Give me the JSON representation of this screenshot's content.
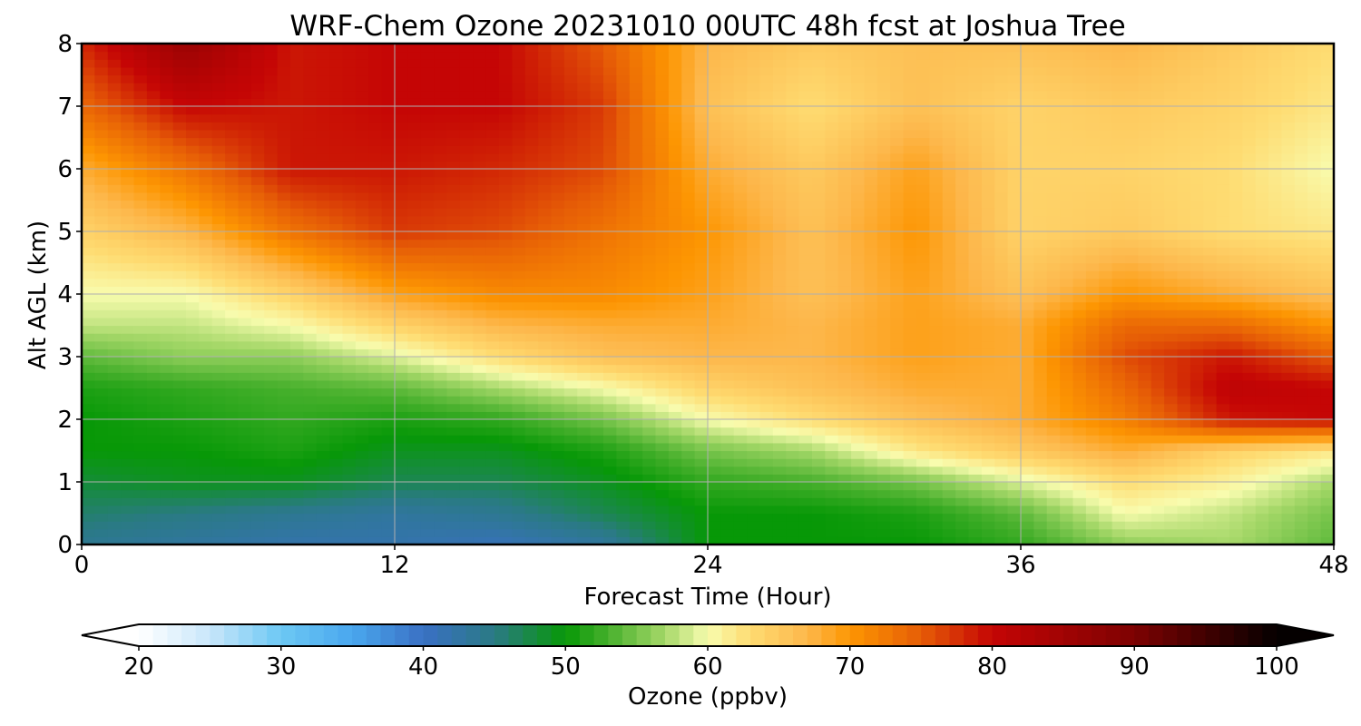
{
  "chart_data": {
    "type": "heatmap",
    "title": "WRF-Chem Ozone  20231010 00UTC 48h fcst at Joshua Tree",
    "xlabel": "Forecast Time (Hour)",
    "ylabel": "Alt AGL (km)",
    "xlim": [
      0,
      48
    ],
    "ylim": [
      0,
      8
    ],
    "x_ticks": [
      0,
      12,
      24,
      36,
      48
    ],
    "y_ticks": [
      0,
      1,
      2,
      3,
      4,
      5,
      6,
      7,
      8
    ],
    "grid": true,
    "x": [
      0,
      4,
      8,
      12,
      16,
      20,
      24,
      28,
      32,
      36,
      40,
      44,
      48
    ],
    "y": [
      0,
      0.5,
      1,
      1.5,
      2,
      2.5,
      3,
      3.5,
      4,
      5,
      6,
      7,
      8
    ],
    "z": [
      [
        44,
        43,
        42,
        42,
        41,
        43,
        50,
        50,
        50,
        52,
        56,
        57,
        54
      ],
      [
        46,
        45,
        44,
        43,
        44,
        47,
        50,
        50,
        51,
        54,
        60,
        58,
        55
      ],
      [
        48,
        49,
        49,
        47,
        47,
        49,
        52,
        53,
        55,
        59,
        63,
        61,
        57
      ],
      [
        50,
        50,
        51,
        49,
        49,
        51,
        55,
        57,
        62,
        65,
        68,
        64,
        62
      ],
      [
        50,
        51,
        52,
        51,
        52,
        55,
        60,
        63,
        66,
        68,
        72,
        79,
        80
      ],
      [
        51,
        52,
        53,
        54,
        57,
        60,
        64,
        66,
        68,
        68,
        74,
        81,
        80
      ],
      [
        54,
        56,
        56,
        59,
        63,
        66,
        67,
        67,
        69,
        68,
        76,
        79,
        75
      ],
      [
        58,
        58,
        60,
        64,
        67,
        68,
        68,
        67,
        69,
        68,
        74,
        74,
        70
      ],
      [
        60,
        60,
        64,
        69,
        71,
        71,
        69,
        66,
        69,
        66,
        70,
        68,
        66
      ],
      [
        64,
        67,
        73,
        77,
        76,
        73,
        70,
        66,
        70,
        64,
        65,
        63,
        62
      ],
      [
        68,
        73,
        79,
        79,
        78,
        76,
        68,
        65,
        69,
        64,
        64,
        63,
        60
      ],
      [
        74,
        80,
        79,
        80,
        80,
        77,
        66,
        63,
        66,
        64,
        65,
        64,
        62
      ],
      [
        78,
        86,
        79,
        80,
        80,
        75,
        67,
        65,
        66,
        66,
        67,
        65,
        63
      ]
    ],
    "colorbar": {
      "label": "Ozone  (ppbv)",
      "min": 20,
      "max": 100,
      "ticks": [
        20,
        30,
        40,
        50,
        60,
        70,
        80,
        90,
        100
      ],
      "extend": "both",
      "colormap": [
        [
          20,
          "#ffffff"
        ],
        [
          25,
          "#c8e6fa"
        ],
        [
          30,
          "#6cc8f4"
        ],
        [
          35,
          "#4aa7ee"
        ],
        [
          40,
          "#3a70c4"
        ],
        [
          45,
          "#2a7a84"
        ],
        [
          50,
          "#079807"
        ],
        [
          53,
          "#47b02c"
        ],
        [
          57,
          "#a6d869"
        ],
        [
          60,
          "#f8fcae"
        ],
        [
          63,
          "#fedc72"
        ],
        [
          67,
          "#fdb74b"
        ],
        [
          70,
          "#fd9602"
        ],
        [
          75,
          "#e65d06"
        ],
        [
          80,
          "#c50505"
        ],
        [
          90,
          "#7d0202"
        ],
        [
          100,
          "#050000"
        ]
      ]
    }
  }
}
